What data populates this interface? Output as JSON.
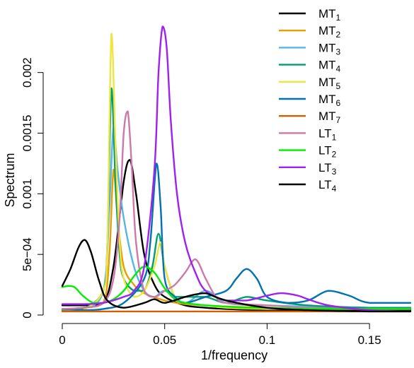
{
  "chart_data": {
    "type": "line",
    "xlabel": "1/frequency",
    "ylabel": "Spectrum",
    "xlim": [
      0,
      0.17
    ],
    "ylim": [
      0,
      0.0024
    ],
    "x_ticks": [
      {
        "value": 0,
        "label": "0"
      },
      {
        "value": 0.05,
        "label": "0.05"
      },
      {
        "value": 0.1,
        "label": "0.1"
      },
      {
        "value": 0.15,
        "label": "0.15"
      }
    ],
    "y_ticks": [
      {
        "value": 0,
        "label": "0"
      },
      {
        "value": 0.0005,
        "label": "5e−04"
      },
      {
        "value": 0.001,
        "label": "0.001"
      },
      {
        "value": 0.0015,
        "label": "0.0015"
      },
      {
        "value": 0.002,
        "label": "0.002"
      }
    ],
    "legend_position": "top-right",
    "series": [
      {
        "name": "MT",
        "sub": "1",
        "color": "#000000",
        "x": [
          0,
          0.01,
          0.02,
          0.025,
          0.03,
          0.033,
          0.036,
          0.04,
          0.045,
          0.05,
          0.06,
          0.07,
          0.08,
          0.1,
          0.12,
          0.15,
          0.17
        ],
        "y": [
          8e-05,
          8e-05,
          0.0001,
          0.0004,
          0.0011,
          0.00128,
          0.001,
          0.0005,
          0.00025,
          0.00015,
          8e-05,
          6e-05,
          5e-05,
          4e-05,
          4e-05,
          4e-05,
          4e-05
        ]
      },
      {
        "name": "MT",
        "sub": "2",
        "color": "#E69F00",
        "x": [
          0,
          0.01,
          0.02,
          0.023,
          0.025,
          0.027,
          0.03,
          0.035,
          0.04,
          0.05,
          0.06,
          0.07,
          0.08,
          0.1,
          0.12,
          0.15,
          0.17
        ],
        "y": [
          5e-05,
          6e-05,
          0.0001,
          0.0005,
          0.0012,
          0.0008,
          0.0004,
          0.00025,
          0.00018,
          0.00012,
          9e-05,
          8e-05,
          7e-05,
          6e-05,
          5e-05,
          5e-05,
          5e-05
        ]
      },
      {
        "name": "MT",
        "sub": "3",
        "color": "#56B4E9",
        "x": [
          0,
          0.01,
          0.02,
          0.023,
          0.025,
          0.027,
          0.03,
          0.035,
          0.04,
          0.045,
          0.05,
          0.06,
          0.07,
          0.08,
          0.1,
          0.12,
          0.15,
          0.17
        ],
        "y": [
          4e-05,
          5e-05,
          0.0002,
          0.0009,
          0.00155,
          0.0012,
          0.0008,
          0.0004,
          0.0002,
          0.00015,
          0.0002,
          0.0001,
          0.0002,
          0.0001,
          8e-05,
          7e-05,
          6e-05,
          5e-05
        ]
      },
      {
        "name": "MT",
        "sub": "4",
        "color": "#009E73",
        "x": [
          0,
          0.01,
          0.02,
          0.022,
          0.024,
          0.026,
          0.028,
          0.03,
          0.035,
          0.04,
          0.044,
          0.047,
          0.05,
          0.055,
          0.06,
          0.07,
          0.08,
          0.09,
          0.1,
          0.12,
          0.15,
          0.17
        ],
        "y": [
          4e-05,
          5e-05,
          0.0002,
          0.0006,
          0.00187,
          0.0011,
          0.0005,
          0.0003,
          0.0002,
          0.0002,
          0.0004,
          0.00067,
          0.0004,
          0.00015,
          0.00015,
          0.00015,
          0.0001,
          0.00015,
          0.00012,
          8e-05,
          6e-05,
          6e-05
        ]
      },
      {
        "name": "MT",
        "sub": "5",
        "color": "#F0E442",
        "x": [
          0,
          0.01,
          0.02,
          0.022,
          0.024,
          0.026,
          0.028,
          0.03,
          0.035,
          0.04,
          0.045,
          0.048,
          0.05,
          0.055,
          0.06,
          0.07,
          0.08,
          0.1,
          0.12,
          0.15,
          0.17
        ],
        "y": [
          3e-05,
          4e-05,
          0.0002,
          0.0006,
          0.00232,
          0.0014,
          0.0006,
          0.0003,
          0.00015,
          0.0002,
          0.0004,
          0.0006,
          0.0004,
          0.00015,
          0.0001,
          8e-05,
          6e-05,
          5e-05,
          5e-05,
          5e-05,
          5e-05
        ]
      },
      {
        "name": "MT",
        "sub": "6",
        "color": "#0072B2",
        "x": [
          0,
          0.01,
          0.02,
          0.03,
          0.04,
          0.043,
          0.046,
          0.048,
          0.05,
          0.055,
          0.06,
          0.07,
          0.08,
          0.085,
          0.09,
          0.095,
          0.1,
          0.11,
          0.12,
          0.13,
          0.14,
          0.15,
          0.17
        ],
        "y": [
          5e-05,
          4e-05,
          5e-05,
          0.0001,
          0.0003,
          0.0006,
          0.00125,
          0.0009,
          0.0003,
          0.00015,
          0.0001,
          0.00015,
          0.0002,
          0.0003,
          0.00038,
          0.0003,
          0.00015,
          0.0001,
          0.00012,
          0.0002,
          0.00016,
          0.0001,
          0.0001
        ]
      },
      {
        "name": "MT",
        "sub": "7",
        "color": "#D55E00",
        "x": [
          0,
          0.05,
          0.1,
          0.15,
          0.17
        ],
        "y": [
          3e-05,
          3e-05,
          3e-05,
          3e-05,
          3e-05
        ]
      },
      {
        "name": "LT",
        "sub": "1",
        "color": "#CC79A7",
        "x": [
          0,
          0.01,
          0.02,
          0.025,
          0.028,
          0.03,
          0.032,
          0.034,
          0.036,
          0.04,
          0.045,
          0.05,
          0.055,
          0.06,
          0.065,
          0.07,
          0.075,
          0.08,
          0.1,
          0.12,
          0.15,
          0.17
        ],
        "y": [
          5e-05,
          6e-05,
          0.0001,
          0.0003,
          0.0008,
          0.0015,
          0.00168,
          0.0012,
          0.0006,
          0.0002,
          0.00015,
          0.0002,
          0.00025,
          0.00035,
          0.00046,
          0.0003,
          0.00015,
          0.0001,
          8e-05,
          6e-05,
          5e-05,
          5e-05
        ]
      },
      {
        "name": "LT",
        "sub": "2",
        "color": "#00EE00",
        "x": [
          0,
          0.003,
          0.006,
          0.01,
          0.015,
          0.02,
          0.025,
          0.03,
          0.035,
          0.04,
          0.045,
          0.05,
          0.055,
          0.06,
          0.07,
          0.08,
          0.09,
          0.1,
          0.12,
          0.15,
          0.17
        ],
        "y": [
          0.00023,
          0.00024,
          0.00023,
          0.00016,
          0.0001,
          0.0001,
          0.00013,
          0.0002,
          0.00032,
          0.0004,
          0.00035,
          0.00022,
          0.00013,
          0.0001,
          8e-05,
          7e-05,
          6e-05,
          6e-05,
          5e-05,
          5e-05,
          5e-05
        ]
      },
      {
        "name": "LT",
        "sub": "3",
        "color": "#A020F0",
        "x": [
          0,
          0.01,
          0.02,
          0.03,
          0.035,
          0.04,
          0.045,
          0.047,
          0.049,
          0.051,
          0.053,
          0.056,
          0.06,
          0.065,
          0.07,
          0.08,
          0.09,
          0.1,
          0.107,
          0.115,
          0.12,
          0.13,
          0.15,
          0.17
        ],
        "y": [
          9e-05,
          9e-05,
          0.0001,
          0.00015,
          0.0002,
          0.0004,
          0.0012,
          0.002,
          0.00238,
          0.0022,
          0.0016,
          0.001,
          0.0006,
          0.00035,
          0.0002,
          0.00012,
          0.00012,
          0.00016,
          0.00018,
          0.00016,
          0.00013,
          8e-05,
          4e-05,
          3e-05
        ]
      },
      {
        "name": "LT",
        "sub": "4",
        "color": "#000000",
        "x": [
          0,
          0.004,
          0.008,
          0.011,
          0.014,
          0.018,
          0.022,
          0.03,
          0.04,
          0.045,
          0.05,
          0.06,
          0.065,
          0.07,
          0.08,
          0.1,
          0.12,
          0.15,
          0.17
        ],
        "y": [
          0.00024,
          0.00038,
          0.00056,
          0.00062,
          0.00052,
          0.00028,
          0.00012,
          6e-05,
          0.0001,
          0.00013,
          0.0001,
          0.00015,
          0.00017,
          0.00018,
          0.00012,
          6e-05,
          4e-05,
          3e-05,
          3e-05
        ]
      }
    ]
  }
}
